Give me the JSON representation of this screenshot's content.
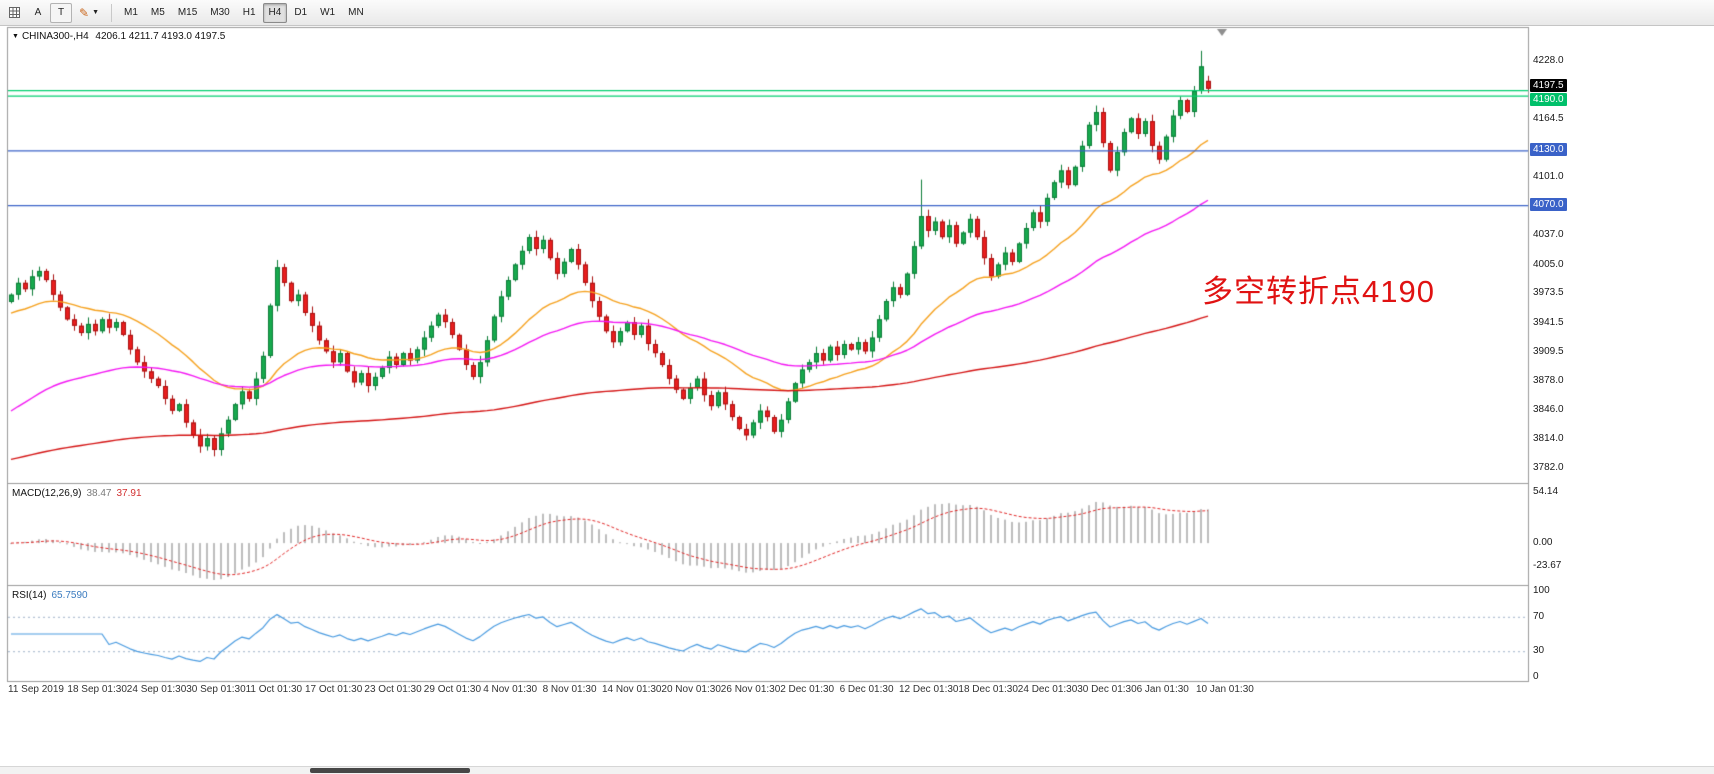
{
  "toolbar": {
    "buttons": {
      "a": "A",
      "t": "T"
    },
    "timeframes": [
      {
        "label": "M1",
        "active": false
      },
      {
        "label": "M5",
        "active": false
      },
      {
        "label": "M15",
        "active": false
      },
      {
        "label": "M30",
        "active": false
      },
      {
        "label": "H1",
        "active": false
      },
      {
        "label": "H4",
        "active": true
      },
      {
        "label": "D1",
        "active": false
      },
      {
        "label": "W1",
        "active": false
      },
      {
        "label": "MN",
        "active": false
      }
    ]
  },
  "chart": {
    "symbol_label": "CHINA300-,H4",
    "ohlc_readout": "4206.1 4211.7 4193.0 4197.5",
    "annotation": {
      "text": "多空转折点4190",
      "color": "#e01212"
    },
    "price_range": [
      3768,
      4264
    ],
    "colors": {
      "green_line": "#00c06a",
      "blue_line": "#3a62c8",
      "black_tag": "#000000"
    },
    "hlines": [
      {
        "price": 4196.0,
        "color": "#00cf6f"
      },
      {
        "price": 4190.0,
        "color": "#00cf6f"
      },
      {
        "price": 4130.0,
        "color": "#3a62c8"
      },
      {
        "price": 4070.0,
        "color": "#3a62c8"
      }
    ],
    "y_axis_labels": [
      {
        "value": "4228.0",
        "price": 4228.0,
        "style": "plain"
      },
      {
        "value": "4197.5",
        "price": 4197.5,
        "style": "black-box"
      },
      {
        "value": "4190.0",
        "price": 4190.0,
        "style": "green-box"
      },
      {
        "value": "4164.5",
        "price": 4164.5,
        "style": "plain"
      },
      {
        "value": "4130.0",
        "price": 4130.0,
        "style": "blue-box"
      },
      {
        "value": "4101.0",
        "price": 4101.0,
        "style": "plain"
      },
      {
        "value": "4070.0",
        "price": 4070.0,
        "style": "blue-box"
      },
      {
        "value": "4037.0",
        "price": 4037.0,
        "style": "plain"
      },
      {
        "value": "4005.0",
        "price": 4005.0,
        "style": "plain"
      },
      {
        "value": "3973.5",
        "price": 3973.5,
        "style": "plain"
      },
      {
        "value": "3941.5",
        "price": 3941.5,
        "style": "plain"
      },
      {
        "value": "3909.5",
        "price": 3909.5,
        "style": "plain"
      },
      {
        "value": "3878.0",
        "price": 3878.0,
        "style": "plain"
      },
      {
        "value": "3846.0",
        "price": 3846.0,
        "style": "plain"
      },
      {
        "value": "3814.0",
        "price": 3814.0,
        "style": "plain"
      },
      {
        "value": "3782.0",
        "price": 3782.0,
        "style": "plain"
      }
    ],
    "x_labels": [
      "11 Sep 2019",
      "18 Sep 01:30",
      "24 Sep 01:30",
      "30 Sep 01:30",
      "11 Oct 01:30",
      "17 Oct 01:30",
      "23 Oct 01:30",
      "29 Oct 01:30",
      "4 Nov 01:30",
      "8 Nov 01:30",
      "14 Nov 01:30",
      "20 Nov 01:30",
      "26 Nov 01:30",
      "2 Dec 01:30",
      "6 Dec 01:30",
      "12 Dec 01:30",
      "18 Dec 01:30",
      "24 Dec 01:30",
      "30 Dec 01:30",
      "6 Jan 01:30",
      "10 Jan 01:30"
    ]
  },
  "chart_data": {
    "type": "candlestick",
    "symbol": "CHINA300-",
    "timeframe": "H4",
    "last_candle": {
      "open": 4206.1,
      "high": 4211.7,
      "low": 4193.0,
      "close": 4197.5
    },
    "closes": [
      3972,
      3985,
      3978,
      3992,
      3998,
      3988,
      3972,
      3958,
      3945,
      3938,
      3930,
      3940,
      3932,
      3945,
      3936,
      3942,
      3928,
      3912,
      3898,
      3888,
      3880,
      3872,
      3858,
      3845,
      3852,
      3832,
      3818,
      3806,
      3815,
      3802,
      3820,
      3835,
      3852,
      3866,
      3858,
      3880,
      3905,
      3960,
      4002,
      3985,
      3965,
      3972,
      3952,
      3938,
      3922,
      3910,
      3898,
      3908,
      3888,
      3876,
      3886,
      3872,
      3882,
      3892,
      3904,
      3895,
      3908,
      3900,
      3912,
      3925,
      3938,
      3950,
      3942,
      3928,
      3912,
      3895,
      3882,
      3898,
      3922,
      3948,
      3970,
      3988,
      4005,
      4020,
      4035,
      4022,
      4032,
      4012,
      3995,
      4008,
      4022,
      4005,
      3985,
      3965,
      3948,
      3932,
      3920,
      3932,
      3942,
      3928,
      3938,
      3918,
      3908,
      3895,
      3880,
      3868,
      3858,
      3870,
      3880,
      3862,
      3850,
      3865,
      3852,
      3838,
      3825,
      3818,
      3832,
      3845,
      3838,
      3822,
      3835,
      3855,
      3875,
      3890,
      3898,
      3908,
      3900,
      3915,
      3906,
      3918,
      3912,
      3920,
      3910,
      3925,
      3945,
      3965,
      3980,
      3972,
      3995,
      4025,
      4058,
      4042,
      4052,
      4035,
      4048,
      4028,
      4040,
      4055,
      4035,
      4012,
      3992,
      4005,
      4018,
      4008,
      4028,
      4045,
      4062,
      4052,
      4078,
      4095,
      4108,
      4092,
      4112,
      4135,
      4158,
      4172,
      4138,
      4108,
      4128,
      4150,
      4165,
      4148,
      4162,
      4135,
      4120,
      4145,
      4168,
      4185,
      4172,
      4195,
      4222,
      4197.5
    ],
    "wick_overrides": {
      "29": {
        "low": 3795
      },
      "38": {
        "high": 4010
      },
      "130": {
        "high": 4098
      },
      "170": {
        "high": 4239
      },
      "171": {
        "open": 4206.1,
        "high": 4211.7,
        "low": 4193.0
      }
    },
    "colors": {
      "bull": "#17a94e",
      "bull_stroke": "#0c7d38",
      "bear": "#e81e1e",
      "bear_stroke": "#a81111"
    },
    "moving_averages": [
      {
        "name": "fast-ma",
        "color": "#f5a11e",
        "alpha": 0.08,
        "seed": 3950
      },
      {
        "name": "mid-ma",
        "color": "#f316f3",
        "alpha": 0.035,
        "seed": 3840
      },
      {
        "name": "slow-ma",
        "color": "#d41414",
        "alpha": 0.009,
        "seed": 3790
      }
    ],
    "hline_levels": [
      4196.0,
      4190.0,
      4130.0,
      4070.0
    ]
  },
  "macd": {
    "label": "MACD(12,26,9)",
    "value1": "38.47",
    "value2": "37.91",
    "params": {
      "fast": 12,
      "slow": 26,
      "signal": 9
    },
    "axis_labels": [
      {
        "text": "54.14",
        "value": 54.14
      },
      {
        "text": "0.00",
        "value": 0.0
      },
      {
        "text": "-23.67",
        "value": -23.67
      }
    ],
    "histogram_color": "#bdbdbd",
    "signal_color": "#e02828"
  },
  "rsi": {
    "label": "RSI(14)",
    "value": "65.7590",
    "period": 14,
    "axis_labels": [
      {
        "text": "100",
        "value": 100
      },
      {
        "text": "70",
        "value": 70
      },
      {
        "text": "30",
        "value": 30
      },
      {
        "text": "0",
        "value": 0
      }
    ],
    "levels": [
      70,
      30
    ],
    "line_color": "#4a9be0",
    "level_color": "#9fb2c8"
  }
}
